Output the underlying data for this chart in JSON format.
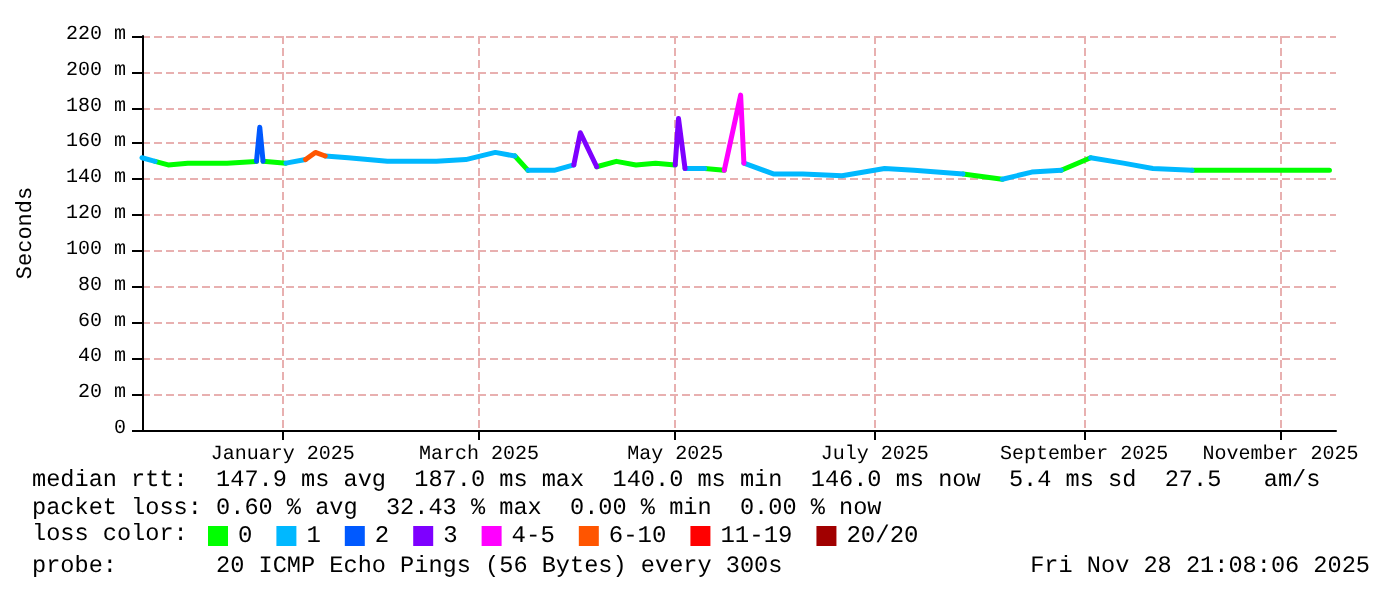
{
  "chart_data": {
    "type": "line",
    "ylabel": "Seconds",
    "legend_title": "loss color:",
    "legend": "bottom",
    "grid": true,
    "marker": "none",
    "line_style": "solid",
    "xlim": [
      "2024-11-28",
      "2025-11-28"
    ],
    "xticks": [
      {
        "value": "2025-01-10",
        "label": "January 2025"
      },
      {
        "value": "2025-03-11",
        "label": "March 2025"
      },
      {
        "value": "2025-05-10",
        "label": "May 2025"
      },
      {
        "value": "2025-07-10",
        "label": "July 2025"
      },
      {
        "value": "2025-09-12",
        "label": "September 2025"
      },
      {
        "value": "2025-11-11",
        "label": "November 2025"
      }
    ],
    "ylim": [
      0,
      220
    ],
    "yticks": [
      0,
      {
        "value": 20,
        "label": "20 m"
      },
      {
        "value": 40,
        "label": "40 m"
      },
      {
        "value": 60,
        "label": "60 m"
      },
      {
        "value": 80,
        "label": "80 m"
      },
      {
        "value": 100,
        "label": "100 m"
      },
      {
        "value": 120,
        "label": "120 m"
      },
      {
        "value": 140,
        "label": "140 m"
      },
      {
        "value": 160,
        "label": "160 m"
      },
      {
        "value": 180,
        "label": "180 m"
      },
      {
        "value": 200,
        "label": "200 m"
      },
      {
        "value": 220,
        "label": "220 m"
      }
    ],
    "series": [
      {
        "name": "0",
        "color": "#00ff00",
        "x": [
          "2024-12-02",
          "2024-12-06",
          "2024-12-12",
          "2024-12-24",
          "2025-01-02",
          "2025-01-03",
          "2025-01-04",
          "2025-01-11",
          "2025-01-14",
          "2025-03-22",
          "2025-03-26",
          "2025-03-30",
          "2025-04-16",
          "2025-04-22",
          "2025-04-28",
          "2025-05-04",
          "2025-05-10",
          "2025-05-11",
          "2025-05-19",
          "2025-05-25",
          "2025-05-28",
          "2025-08-06",
          "2025-08-18",
          "2025-08-22",
          "2025-09-05",
          "2025-09-14",
          "2025-09-19",
          "2025-10-15",
          "2025-10-27",
          "2025-11-11",
          "2025-11-26"
        ],
        "values": [
          150,
          148,
          149,
          149,
          150,
          null,
          150,
          149,
          null,
          153,
          145,
          null,
          147,
          150,
          148,
          149,
          148,
          null,
          146,
          145,
          null,
          143,
          140,
          null,
          145,
          152,
          null,
          145,
          145,
          145,
          145
        ]
      },
      {
        "name": "1",
        "color": "#00b8ff",
        "x": [
          "2024-11-28",
          "2024-12-02",
          "2024-12-03",
          "2025-01-11",
          "2025-01-17",
          "2025-01-19",
          "2025-01-23",
          "2025-01-30",
          "2025-02-05",
          "2025-02-11",
          "2025-02-17",
          "2025-02-26",
          "2025-03-07",
          "2025-03-16",
          "2025-03-22",
          "2025-03-24",
          "2025-03-26",
          "2025-04-03",
          "2025-04-09",
          "2025-04-10",
          "2025-05-13",
          "2025-05-19",
          "2025-05-21",
          "2025-05-31",
          "2025-06-09",
          "2025-06-18",
          "2025-06-30",
          "2025-07-13",
          "2025-07-22",
          "2025-08-06",
          "2025-08-12",
          "2025-08-18",
          "2025-08-27",
          "2025-09-05",
          "2025-09-09",
          "2025-09-14",
          "2025-09-24",
          "2025-10-03",
          "2025-10-15"
        ],
        "values": [
          152,
          150,
          null,
          149,
          151,
          null,
          153,
          152,
          151,
          150,
          150,
          150,
          151,
          155,
          153,
          null,
          145,
          145,
          148,
          null,
          146,
          146,
          null,
          149,
          143,
          143,
          142,
          146,
          145,
          143,
          null,
          140,
          144,
          145,
          null,
          152,
          149,
          146,
          145
        ]
      },
      {
        "name": "2",
        "color": "#0059ff",
        "x": [
          "2025-01-02",
          "2025-01-03",
          "2025-01-04"
        ],
        "values": [
          150,
          169,
          150
        ]
      },
      {
        "name": "3",
        "color": "#7e00ff",
        "x": [
          "2025-04-09",
          "2025-04-11",
          "2025-04-16",
          "2025-04-20",
          "2025-05-10",
          "2025-05-11",
          "2025-05-13"
        ],
        "values": [
          148,
          166,
          147,
          null,
          148,
          174,
          146
        ]
      },
      {
        "name": "4-5",
        "color": "#ff00ff",
        "x": [
          "2025-05-25",
          "2025-05-30",
          "2025-05-31"
        ],
        "values": [
          145,
          187,
          149
        ]
      },
      {
        "name": "6-10",
        "color": "#ff5500",
        "x": [
          "2025-01-17",
          "2025-01-20",
          "2025-01-23"
        ],
        "values": [
          151,
          155,
          153
        ]
      },
      {
        "name": "11-19",
        "color": "#ff0000"
      },
      {
        "name": "20/20",
        "color": "#a10000"
      }
    ],
    "annotations": [
      "median rtt:  147.9 ms avg  187.0 ms max  140.0 ms min  146.0 ms now  5.4 ms sd  27.5   am/s",
      "packet loss: 0.60 % avg  32.43 % max  0.00 % min  0.00 % now",
      "probe:       20 ICMP Echo Pings (56 Bytes) every 300s",
      "Fri Nov 28 21:08:06 2025"
    ]
  }
}
